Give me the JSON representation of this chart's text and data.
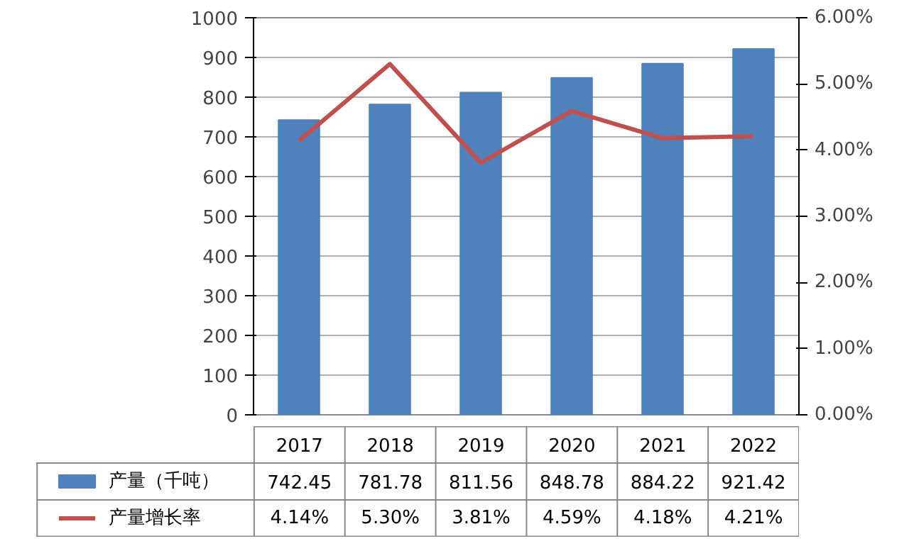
{
  "chart_data": {
    "type": "bar",
    "categories": [
      "2017",
      "2018",
      "2019",
      "2020",
      "2021",
      "2022"
    ],
    "series": [
      {
        "name": "产量（千吨）",
        "color": "#4f81bd",
        "values": [
          742.45,
          781.78,
          811.56,
          848.78,
          884.22,
          921.42
        ],
        "value_labels": [
          "742.45",
          "781.78",
          "811.56",
          "848.78",
          "884.22",
          "921.42"
        ]
      },
      {
        "name": "产量增长率",
        "type": "line",
        "axis": "y2",
        "color": "#c0504d",
        "values": [
          4.14,
          5.3,
          3.81,
          4.59,
          4.18,
          4.21
        ],
        "value_labels": [
          "4.14%",
          "5.30%",
          "3.81%",
          "4.59%",
          "4.18%",
          "4.21%"
        ]
      }
    ],
    "ylim": [
      0,
      1000
    ],
    "yticks": [
      0,
      100,
      200,
      300,
      400,
      500,
      600,
      700,
      800,
      900,
      1000
    ],
    "y2lim": [
      0,
      6
    ],
    "y2ticks": [
      {
        "value": 0,
        "label": "0.00%"
      },
      {
        "value": 1,
        "label": "1.00%"
      },
      {
        "value": 2,
        "label": "2.00%"
      },
      {
        "value": 3,
        "label": "3.00%"
      },
      {
        "value": 4,
        "label": "4.00%"
      },
      {
        "value": 5,
        "label": "5.00%"
      },
      {
        "value": 6,
        "label": "6.00%"
      }
    ],
    "grid": "y",
    "legend": "bottom",
    "marker": "none",
    "line_style": "solid"
  }
}
